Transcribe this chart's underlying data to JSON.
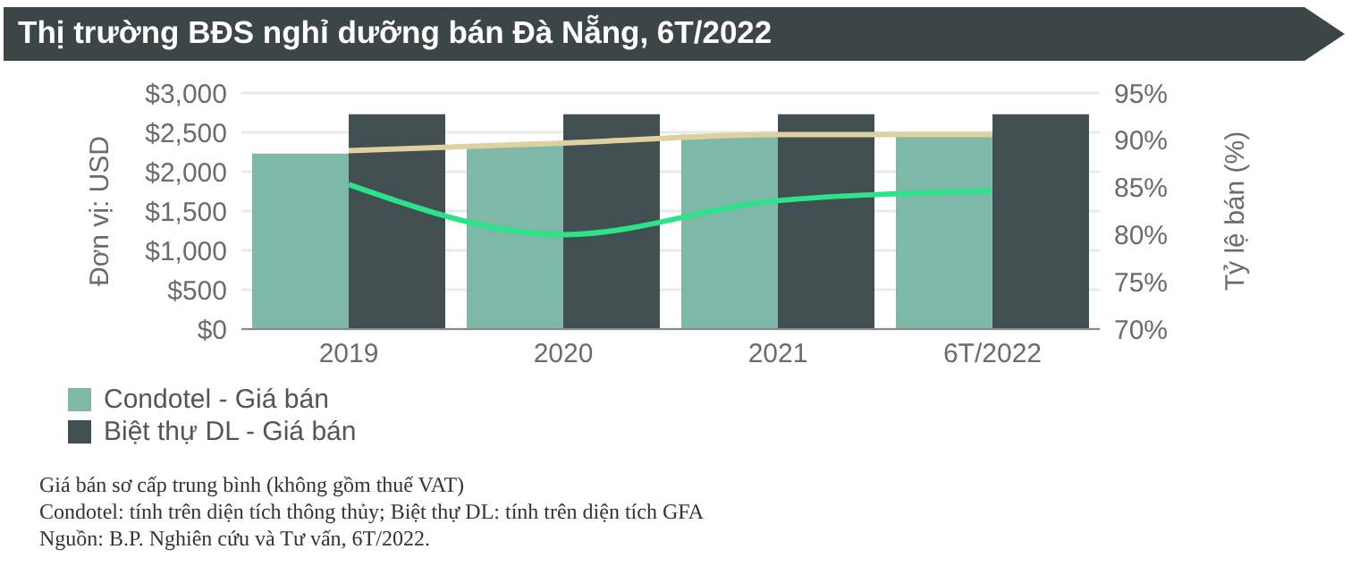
{
  "chart_data": {
    "type": "bar",
    "title": "Thị trường BĐS nghỉ dưỡng bán Đà Nẵng, 6T/2022",
    "ylabel": "Đơn vị: USD",
    "y2label": "Tỷ lệ bán (%)",
    "categories": [
      "2019",
      "2020",
      "2021",
      "6T/2022"
    ],
    "series": [
      {
        "name": "Condotel - Giá bán",
        "color": "#7fb8a8",
        "values": [
          2230,
          2330,
          2470,
          2470
        ]
      },
      {
        "name": "Biệt thự DL  - Giá bán",
        "color": "#414f52",
        "values": [
          2730,
          2730,
          2730,
          2730
        ]
      },
      {
        "type": "line",
        "axis": "y2",
        "color": "#ddd1a0",
        "values": [
          88.9,
          89.7,
          90.6,
          90.6
        ]
      },
      {
        "type": "line",
        "axis": "y2",
        "color": "#2de38a",
        "values": [
          85.3,
          80.0,
          83.6,
          84.6
        ]
      }
    ],
    "ylim": [
      0,
      3000
    ],
    "yticks": [
      {
        "value": 0,
        "label": "$0"
      },
      {
        "value": 500,
        "label": "$500"
      },
      {
        "value": 1000,
        "label": "$1,000"
      },
      {
        "value": 1500,
        "label": "$1,500"
      },
      {
        "value": 2000,
        "label": "$2,000"
      },
      {
        "value": 2500,
        "label": "$2,500"
      },
      {
        "value": 3000,
        "label": "$3,000"
      }
    ],
    "y2lim": [
      70,
      95
    ],
    "y2ticks": [
      {
        "value": 70,
        "label": "70%"
      },
      {
        "value": 75,
        "label": "75%"
      },
      {
        "value": 80,
        "label": "80%"
      },
      {
        "value": 85,
        "label": "85%"
      },
      {
        "value": 90,
        "label": "90%"
      },
      {
        "value": 95,
        "label": "95%"
      }
    ],
    "grid": "y",
    "legend": "bottom left",
    "marker": "none",
    "annotations": [
      "Giá bán sơ cấp trung bình (không gồm thuế VAT)",
      "Condotel: tính trên diện tích thông thủy; Biệt thự DL: tính trên diện tích GFA",
      "Nguồn: B.P. Nghiên cứu và Tư vấn, 6T/2022."
    ]
  }
}
